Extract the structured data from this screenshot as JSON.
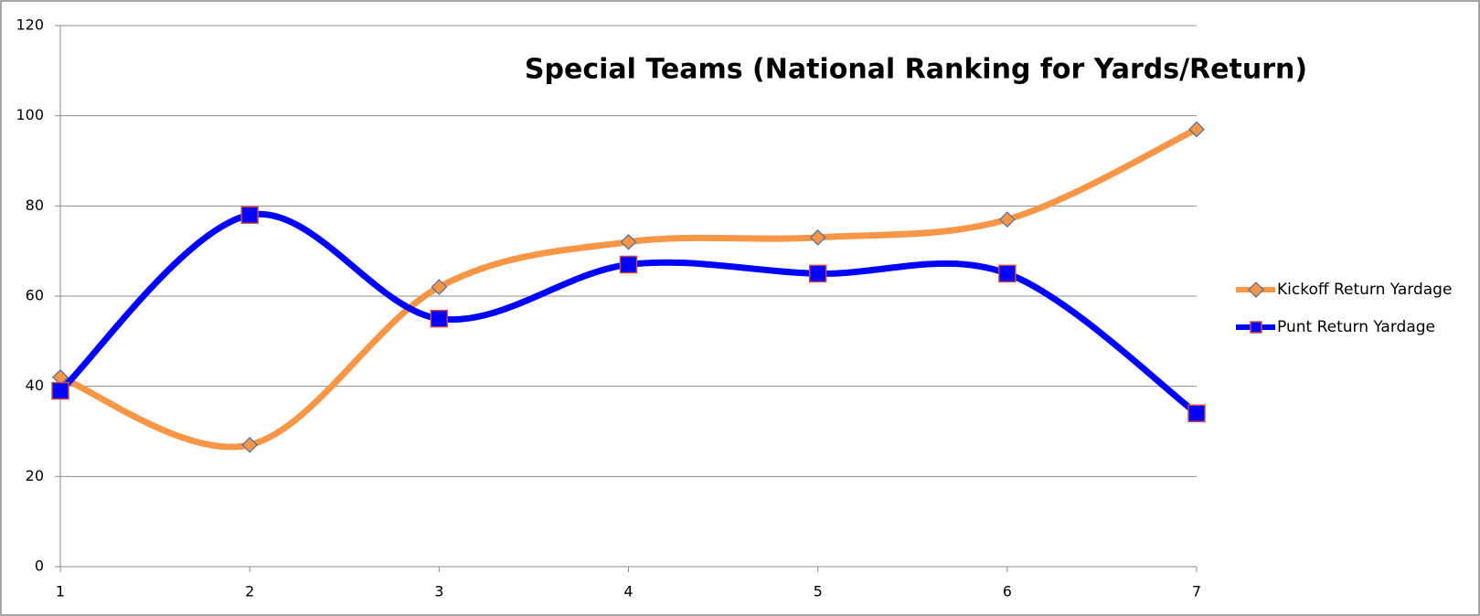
{
  "chart_data": {
    "type": "line",
    "title": "Special Teams (National Ranking for Yards/Return)",
    "x": [
      1,
      2,
      3,
      4,
      5,
      6,
      7
    ],
    "series": [
      {
        "name": "Kickoff Return Yardage",
        "color": "#f79646",
        "marker": "diamond",
        "values": [
          42,
          27,
          62,
          72,
          73,
          77,
          97
        ]
      },
      {
        "name": "Punt Return Yardage",
        "color": "#0000ff",
        "marker": "square",
        "values": [
          39,
          78,
          55,
          67,
          65,
          65,
          34
        ]
      }
    ],
    "xlim": [
      1,
      7
    ],
    "xticks": [
      1,
      2,
      3,
      4,
      5,
      6,
      7
    ],
    "ylim": [
      0,
      120
    ],
    "yticks": [
      0,
      20,
      40,
      60,
      80,
      100,
      120
    ],
    "grid": true,
    "smooth": true,
    "legend": "right"
  }
}
